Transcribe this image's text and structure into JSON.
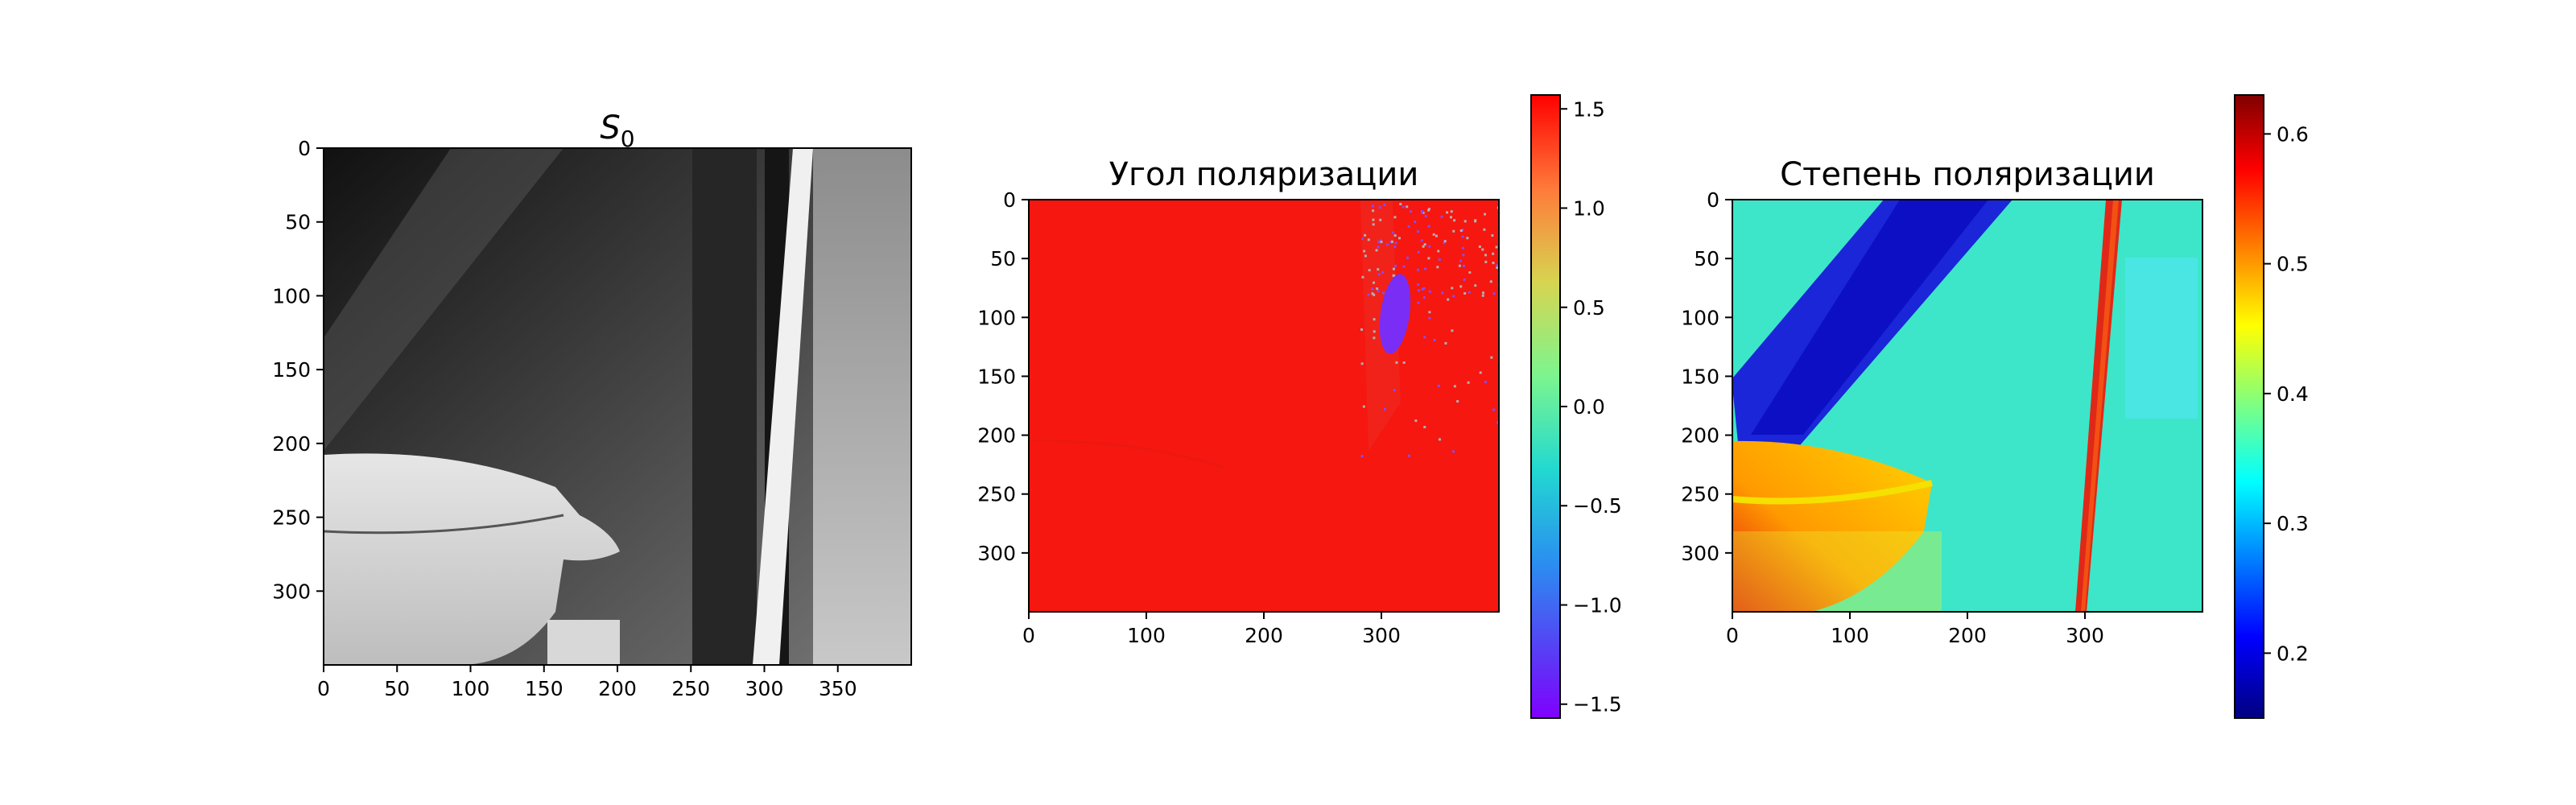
{
  "chart_data": [
    {
      "type": "heatmap",
      "title": "S",
      "title_sub": "0",
      "colormap": "gray",
      "colorbar": false,
      "xlim": [
        0,
        400
      ],
      "ylim": [
        350,
        0
      ],
      "xticks": [
        0,
        50,
        100,
        150,
        200,
        250,
        300,
        350
      ],
      "yticks": [
        0,
        50,
        100,
        150,
        200,
        250,
        300
      ],
      "description_regions": [
        {
          "feature": "dark background",
          "x": [
            0,
            400
          ],
          "y": [
            0,
            200
          ],
          "value": 0.15
        },
        {
          "feature": "cup",
          "x": [
            0,
            165
          ],
          "y": [
            205,
            350
          ],
          "value": 0.85
        },
        {
          "feature": "bright vertical strip",
          "x": [
            293,
            333
          ],
          "y": [
            0,
            350
          ],
          "value": 0.95
        },
        {
          "feature": "plants on right",
          "x": [
            335,
            400
          ],
          "y": [
            0,
            350
          ],
          "value": 0.55
        }
      ]
    },
    {
      "type": "heatmap",
      "title": "Угол поляризации",
      "colormap": "rainbow",
      "colorbar": true,
      "clim": [
        -1.57,
        1.57
      ],
      "xlim": [
        0,
        400
      ],
      "ylim": [
        350,
        0
      ],
      "xticks": [
        0,
        100,
        200,
        300
      ],
      "yticks": [
        0,
        50,
        100,
        150,
        200,
        250,
        300
      ],
      "colorbar_ticks": [
        "1.5",
        "1.0",
        "0.5",
        "0.0",
        "−0.5",
        "−1.0",
        "−1.5"
      ],
      "colorbar_tick_values": [
        1.5,
        1.0,
        0.5,
        0.0,
        -0.5,
        -1.0,
        -1.5
      ],
      "dominant_value": 1.5,
      "anomaly_region": {
        "x": [
          300,
          325
        ],
        "y": [
          60,
          130
        ],
        "value": -1.5
      }
    },
    {
      "type": "heatmap",
      "title": "Степень поляризации",
      "colormap": "jet",
      "colorbar": true,
      "clim": [
        0.15,
        0.63
      ],
      "xlim": [
        0,
        400
      ],
      "ylim": [
        350,
        0
      ],
      "xticks": [
        0,
        100,
        200,
        300
      ],
      "yticks": [
        0,
        50,
        100,
        150,
        200,
        250,
        300
      ],
      "colorbar_ticks": [
        "0.6",
        "0.5",
        "0.4",
        "0.3",
        "0.2"
      ],
      "colorbar_tick_values": [
        0.6,
        0.5,
        0.4,
        0.3,
        0.2
      ],
      "dominant_value": 0.36,
      "regions": [
        {
          "feature": "dark blue diagonal band",
          "value": 0.18
        },
        {
          "feature": "cup (warm)",
          "value": 0.52
        },
        {
          "feature": "red vertical line",
          "value": 0.58
        }
      ]
    }
  ]
}
